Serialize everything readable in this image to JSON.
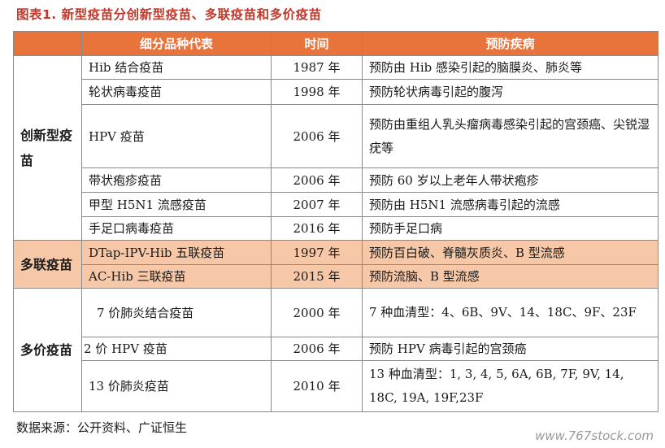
{
  "title": "图表1. 新型疫苗分创新型疫苗、多联疫苗和多价疫苗",
  "headers": {
    "product": "细分品种代表",
    "year": "时间",
    "prevent": "预防疾病"
  },
  "categories": {
    "innovative": "创新型疫苗",
    "combination": "多联疫苗",
    "multivalent": "多价疫苗"
  },
  "rows": [
    {
      "product": "Hib 结合疫苗",
      "year": "1987 年",
      "prevent": "预防由 Hib 感染引起的脑膜炎、肺炎等"
    },
    {
      "product": "轮状病毒疫苗",
      "year": "1998 年",
      "prevent": "预防轮状病毒引起的腹泻"
    },
    {
      "product": "HPV 疫苗",
      "year": "2006 年",
      "prevent": "预防由重组人乳头瘤病毒感染引起的宫颈癌、尖锐湿疣等"
    },
    {
      "product": "带状疱疹疫苗",
      "year": "2006 年",
      "prevent": "预防 60 岁以上老年人带状疱疹"
    },
    {
      "product": "甲型 H5N1 流感疫苗",
      "year": "2007 年",
      "prevent": "预防由 H5N1 流感病毒引起的流感"
    },
    {
      "product": "手足口病毒疫苗",
      "year": "2016 年",
      "prevent": "预防手足口病"
    },
    {
      "product": "DTap-IPV-Hib 五联疫苗",
      "year": "1997 年",
      "prevent": "预防百白破、脊髓灰质炎、B 型流感"
    },
    {
      "product": "AC-Hib 三联疫苗",
      "year": "2015 年",
      "prevent": "预防流脑、B 型流感"
    },
    {
      "product": "7 价肺炎结合疫苗",
      "year": "2000 年",
      "prevent": "7 种血清型：4、6B、9V、14、18C、9F、23F"
    },
    {
      "product": "2 价 HPV 疫苗",
      "year": "2006 年",
      "prevent": "预防 HPV 病毒引起的宫颈癌"
    },
    {
      "product": "13 价肺炎疫苗",
      "year": "2010 年",
      "prevent": "13 种血清型：1, 3, 4, 5, 6A, 6B, 7F, 9V, 14, 18C, 19A, 19F,23F"
    }
  ],
  "source": "数据来源：公开资料、广证恒生",
  "watermark": "www.767stock.com"
}
